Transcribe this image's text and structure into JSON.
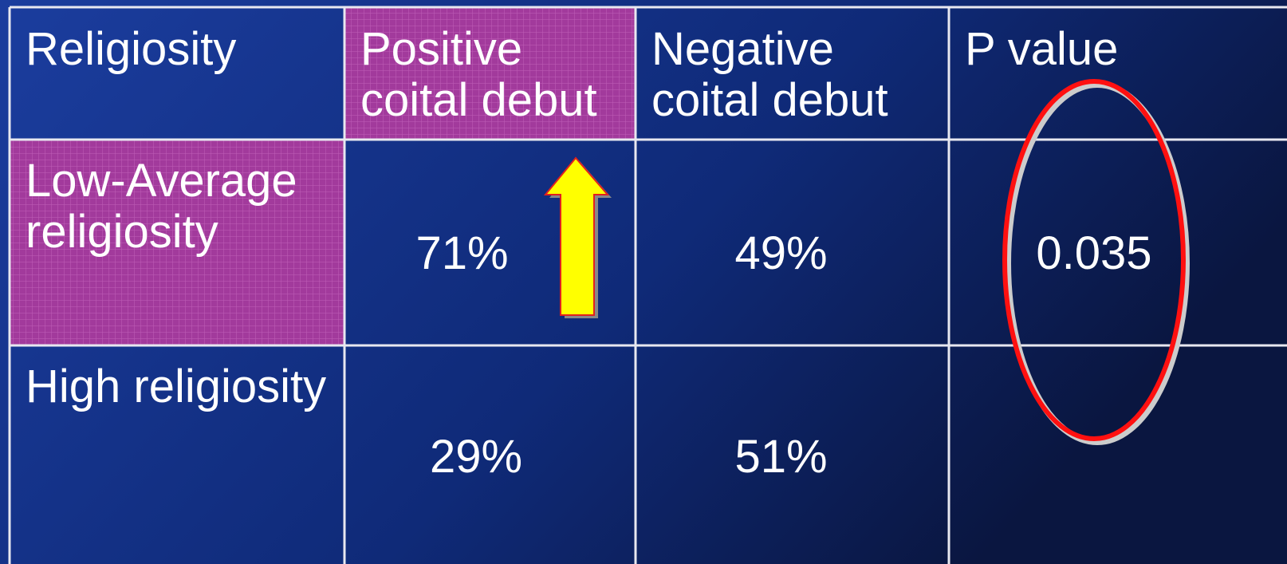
{
  "table": {
    "header": [
      "Religiosity",
      "Positive coital debut",
      "Negative coital debut",
      "P value"
    ],
    "rows": [
      [
        "Low-Average religiosity",
        "71%",
        "49%",
        "0.035"
      ],
      [
        "High religiosity",
        "29%",
        "51%",
        ""
      ]
    ]
  }
}
